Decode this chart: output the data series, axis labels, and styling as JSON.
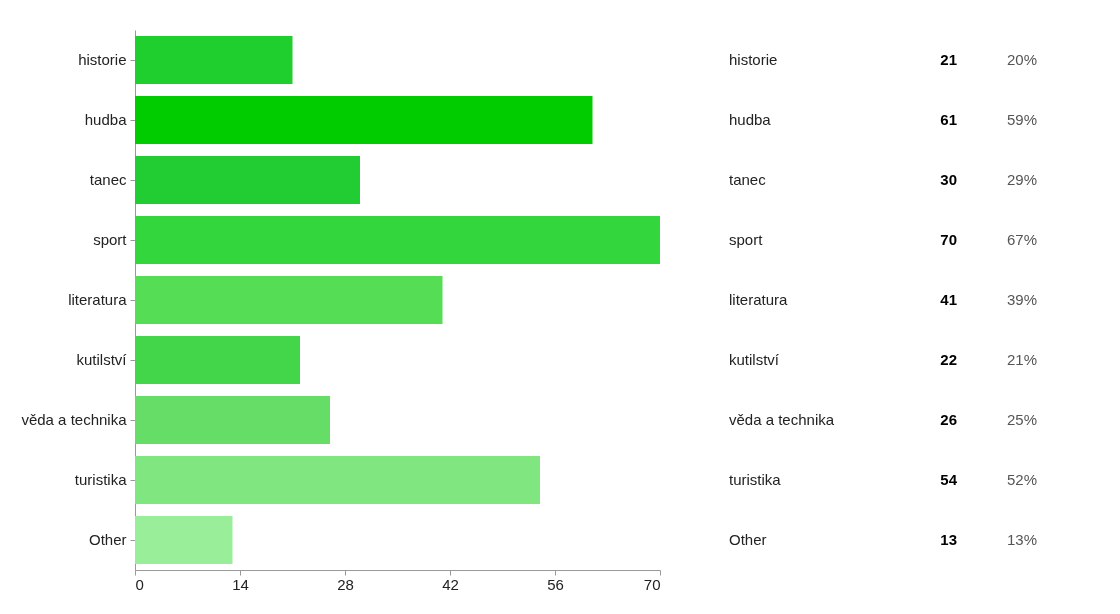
{
  "chart_data": {
    "type": "bar",
    "orientation": "horizontal",
    "categories": [
      "historie",
      "hudba",
      "tanec",
      "sport",
      "literatura",
      "kutilství",
      "věda a technika",
      "turistika",
      "Other"
    ],
    "values": [
      21,
      61,
      30,
      70,
      41,
      22,
      26,
      54,
      13
    ],
    "colors": [
      "#1ecf2e",
      "#00cc00",
      "#22cc33",
      "#33d63d",
      "#55dd55",
      "#44d64a",
      "#66dd66",
      "#80e680",
      "#99ee99"
    ],
    "xlim": [
      0,
      70
    ],
    "xticks": [
      0,
      14,
      28,
      42,
      56,
      70
    ],
    "data_labels": true,
    "annotations": [
      "20%",
      "59%",
      "29%",
      "67%",
      "39%",
      "21%",
      "25%",
      "52%",
      "13%"
    ],
    "grid": false
  }
}
